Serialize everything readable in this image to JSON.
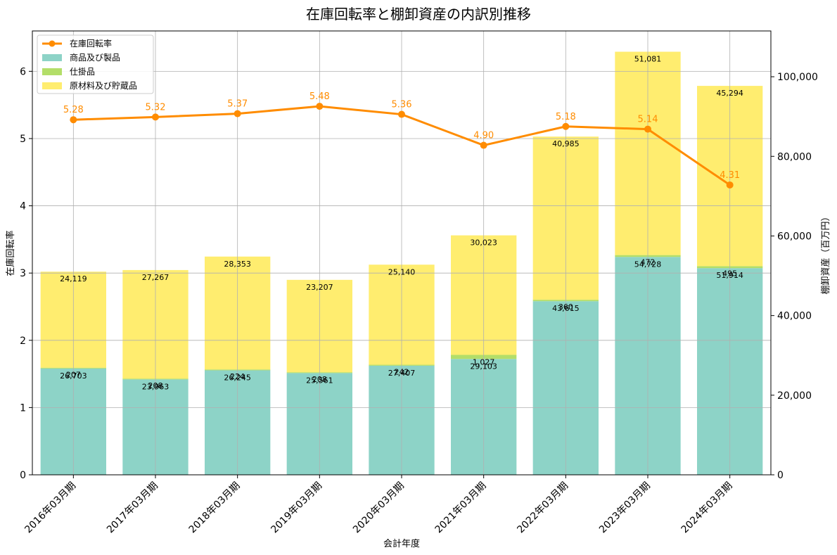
{
  "chart_data": {
    "type": "bar",
    "title": "在庫回転率と棚卸資産の内訳別推移",
    "xlabel": "会計年度",
    "ylabel_left": "在庫回転率",
    "ylabel_right": "棚卸資産（百万円）",
    "categories": [
      "2016年03月期",
      "2017年03月期",
      "2018年03月期",
      "2019年03月期",
      "2020年03月期",
      "2021年03月期",
      "2022年03月期",
      "2023年03月期",
      "2024年03月期"
    ],
    "bar_series": [
      {
        "name": "商品及び製品",
        "color": "#8dd3c7",
        "values": [
          26703,
          23963,
          26245,
          25561,
          27407,
          29103,
          43615,
          54728,
          51914
        ]
      },
      {
        "name": "仕掛品",
        "color": "#b3de69",
        "values": [
          207,
          208,
          224,
          208,
          242,
          1027,
          360,
          472,
          495
        ]
      },
      {
        "name": "原材料及び貯蔵品",
        "color": "#ffed6f",
        "values": [
          24119,
          27267,
          28353,
          23207,
          25140,
          30023,
          40985,
          51081,
          45294
        ]
      }
    ],
    "bar_labels": [
      [
        "26,703",
        "23,963",
        "26,245",
        "25,561",
        "27,407",
        "29,103",
        "43,615",
        "54,728",
        "51,914"
      ],
      [
        "207",
        "208",
        "224",
        "208",
        "242",
        "1,027",
        "360",
        "472",
        "495"
      ],
      [
        "24,119",
        "27,267",
        "28,353",
        "23,207",
        "25,140",
        "30,023",
        "40,985",
        "51,081",
        "45,294"
      ]
    ],
    "line_series": {
      "name": "在庫回転率",
      "color": "#ff8c00",
      "values": [
        5.28,
        5.32,
        5.37,
        5.48,
        5.36,
        4.9,
        5.18,
        5.14,
        4.31
      ]
    },
    "line_labels": [
      "5.28",
      "5.32",
      "5.37",
      "5.48",
      "5.36",
      "4.90",
      "5.18",
      "5.14",
      "4.31"
    ],
    "y_left": {
      "lim": [
        0,
        6.6
      ],
      "ticks": [
        0,
        1,
        2,
        3,
        4,
        5,
        6
      ],
      "tick_labels": [
        "0",
        "1",
        "2",
        "3",
        "4",
        "5",
        "6"
      ]
    },
    "y_right": {
      "lim": [
        0,
        111500
      ],
      "ticks": [
        0,
        20000,
        40000,
        60000,
        80000,
        100000
      ],
      "tick_labels": [
        "0",
        "20,000",
        "40,000",
        "60,000",
        "80,000",
        "100,000"
      ]
    },
    "grid": true,
    "legend_position": "top-left"
  }
}
